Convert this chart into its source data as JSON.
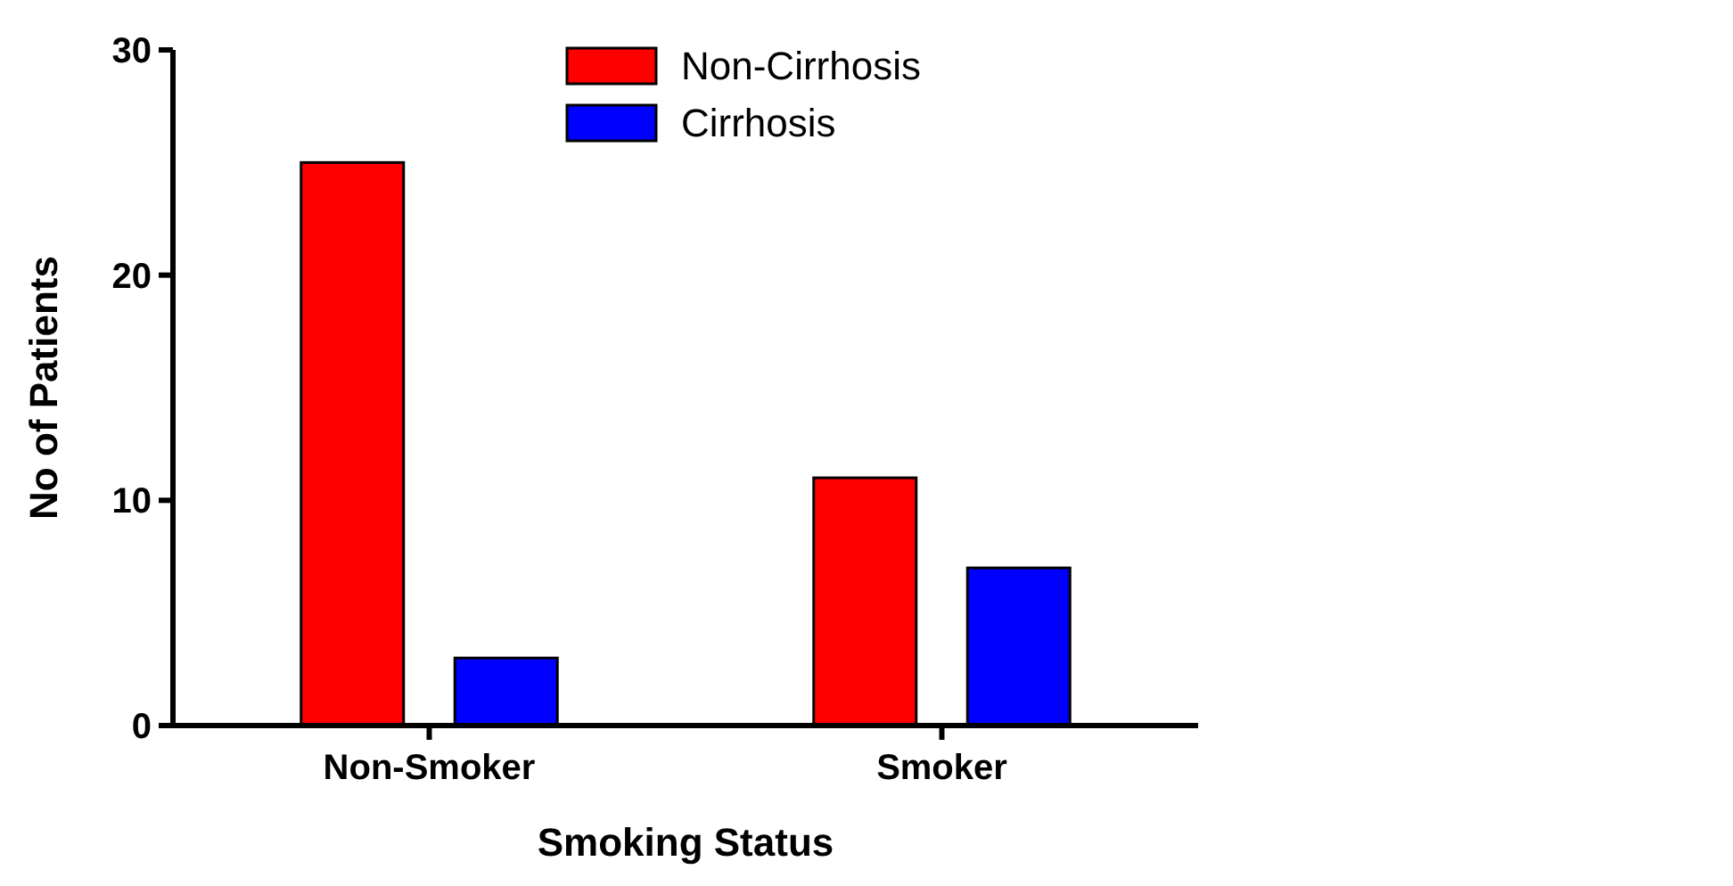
{
  "chart_data": {
    "type": "bar",
    "xlabel": "Smoking Status",
    "ylabel": "No of Patients",
    "categories": [
      "Non-Smoker",
      "Smoker"
    ],
    "series": [
      {
        "name": "Non-Cirrhosis",
        "color": "#ff0000",
        "values": [
          25,
          11
        ]
      },
      {
        "name": "Cirrhosis",
        "color": "#0000ff",
        "values": [
          3,
          7
        ]
      }
    ],
    "ylim": [
      0,
      30
    ],
    "yticks": [
      0,
      10,
      20,
      30
    ],
    "grid": false,
    "legend": "right"
  }
}
